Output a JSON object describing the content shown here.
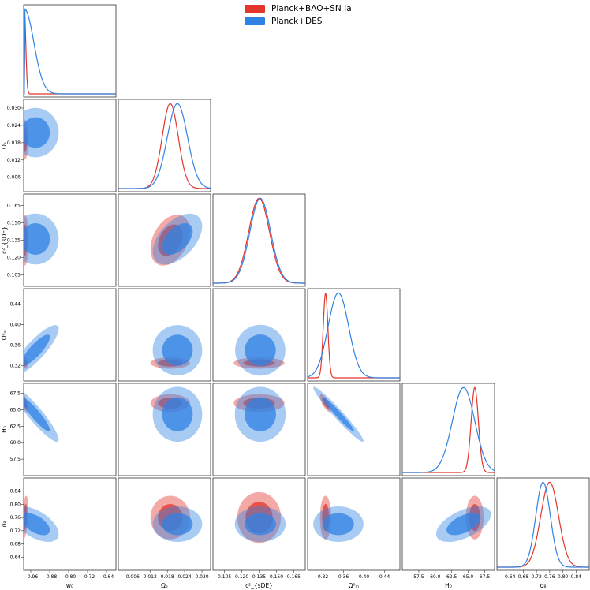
{
  "chart_data": {
    "type": "corner",
    "legend": [
      {
        "name": "Planck+BAO+SN Ia",
        "color": "#e2352b"
      },
      {
        "name": "Planck+DES",
        "color": "#2f82e4"
      }
    ],
    "parameters": [
      {
        "key": "w0",
        "label": "w₀",
        "range": [
          -0.99,
          -0.6
        ],
        "ticks": [
          -0.96,
          -0.88,
          -0.8,
          -0.72,
          -0.64
        ],
        "tick_labels": [
          "−0.96",
          "−0.88",
          "−0.80",
          "−0.72",
          "−0.64"
        ]
      },
      {
        "key": "Oe",
        "label": "Ωₑ",
        "range": [
          0.001,
          0.033
        ],
        "ticks": [
          0.006,
          0.012,
          0.018,
          0.024,
          0.03
        ],
        "tick_labels": [
          "0.006",
          "0.012",
          "0.018",
          "0.024",
          "0.030"
        ]
      },
      {
        "key": "c2",
        "label": "c²_{sDE}",
        "range": [
          0.095,
          0.175
        ],
        "ticks": [
          0.105,
          0.12,
          0.135,
          0.15,
          0.165
        ],
        "tick_labels": [
          "0.105",
          "0.120",
          "0.135",
          "0.150",
          "0.165"
        ]
      },
      {
        "key": "Om",
        "label": "Ω⁰ₘ",
        "range": [
          0.29,
          0.47
        ],
        "ticks": [
          0.32,
          0.36,
          0.4,
          0.44
        ],
        "tick_labels": [
          "0.32",
          "0.36",
          "0.40",
          "0.44"
        ]
      },
      {
        "key": "H0",
        "label": "H₀",
        "range": [
          55.0,
          69.0
        ],
        "ticks": [
          57.5,
          60.0,
          62.5,
          65.0,
          67.5
        ],
        "tick_labels": [
          "57.5",
          "60.0",
          "62.5",
          "65.0",
          "67.5"
        ]
      },
      {
        "key": "s8",
        "label": "σ₈",
        "range": [
          0.6,
          0.88
        ],
        "ticks": [
          0.64,
          0.68,
          0.72,
          0.76,
          0.8,
          0.84
        ],
        "tick_labels": [
          "0.64",
          "0.68",
          "0.72",
          "0.76",
          "0.80",
          "0.84"
        ]
      }
    ],
    "series": [
      {
        "name": "Planck+BAO+SN Ia",
        "color": "#e2352b",
        "mean": [
          -0.985,
          0.019,
          0.135,
          0.325,
          66.0,
          0.76
        ],
        "sigma": [
          0.006,
          0.0028,
          0.009,
          0.0045,
          0.55,
          0.027
        ],
        "corr": {
          "0,1": 0.0,
          "0,2": 0.0,
          "0,3": 0.0,
          "0,4": -0.6,
          "0,5": 0.4,
          "1,2": 0.35,
          "1,3": 0.0,
          "1,4": 0.0,
          "1,5": 0.0,
          "2,3": 0.0,
          "2,4": 0.0,
          "2,5": 0.0,
          "3,4": -0.75,
          "3,5": 0.0,
          "4,5": 0.0
        }
      },
      {
        "name": "Planck+DES",
        "color": "#2f82e4",
        "mean": [
          -0.94,
          0.0215,
          0.136,
          0.35,
          64.3,
          0.74
        ],
        "sigma": [
          0.04,
          0.0035,
          0.009,
          0.02,
          1.7,
          0.022
        ],
        "corr": {
          "0,1": 0.0,
          "0,2": 0.0,
          "0,3": 0.85,
          "0,4": -0.92,
          "0,5": -0.55,
          "1,2": 0.5,
          "1,3": 0.0,
          "1,4": 0.0,
          "1,5": 0.0,
          "2,3": 0.0,
          "2,4": 0.0,
          "2,5": 0.0,
          "3,4": -0.97,
          "3,5": 0.0,
          "4,5": 0.55
        }
      }
    ]
  }
}
